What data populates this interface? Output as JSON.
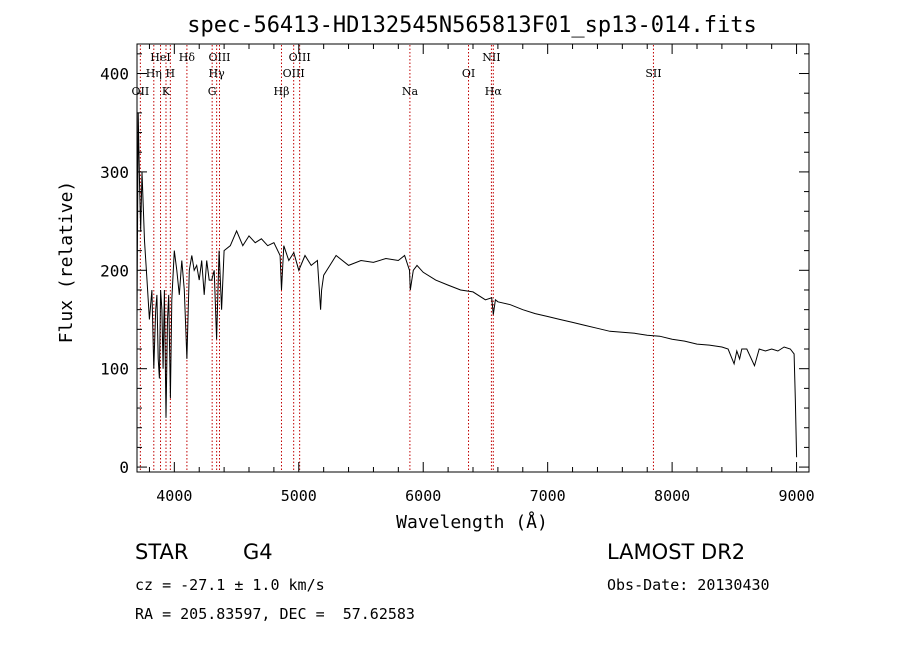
{
  "chart_data": {
    "type": "line",
    "title": "spec-56413-HD132545N565813F01_sp13-014.fits",
    "xlabel": "Wavelength (Å)",
    "ylabel": "Flux (relative)",
    "xlim": [
      3700,
      9100
    ],
    "ylim": [
      -5,
      430
    ],
    "x_ticks": [
      4000,
      5000,
      6000,
      7000,
      8000,
      9000
    ],
    "y_ticks": [
      0,
      100,
      200,
      300,
      400
    ],
    "grid": false,
    "series": [
      {
        "x": [
          3700,
          3710,
          3720,
          3730,
          3740,
          3760,
          3780,
          3800,
          3820,
          3835,
          3850,
          3860,
          3870,
          3880,
          3890,
          3900,
          3910,
          3920,
          3933,
          3945,
          3955,
          3968,
          3980,
          4000,
          4020,
          4040,
          4060,
          4080,
          4101,
          4120,
          4140,
          4160,
          4180,
          4200,
          4220,
          4240,
          4260,
          4280,
          4300,
          4320,
          4340,
          4360,
          4380,
          4400,
          4450,
          4500,
          4550,
          4600,
          4650,
          4700,
          4750,
          4800,
          4850,
          4861,
          4880,
          4920,
          4960,
          5000,
          5050,
          5100,
          5150,
          5175,
          5183,
          5200,
          5250,
          5300,
          5400,
          5500,
          5600,
          5700,
          5800,
          5850,
          5890,
          5896,
          5920,
          5950,
          6000,
          6100,
          6200,
          6300,
          6400,
          6500,
          6550,
          6563,
          6580,
          6600,
          6700,
          6800,
          6900,
          7000,
          7100,
          7200,
          7300,
          7400,
          7500,
          7600,
          7700,
          7800,
          7900,
          8000,
          8100,
          8200,
          8300,
          8400,
          8450,
          8498,
          8520,
          8542,
          8560,
          8600,
          8662,
          8700,
          8750,
          8800,
          8850,
          8900,
          8950,
          8980,
          8990,
          9000
        ],
        "y": [
          150,
          360,
          290,
          240,
          300,
          230,
          190,
          150,
          180,
          100,
          160,
          175,
          110,
          90,
          180,
          160,
          100,
          180,
          50,
          150,
          175,
          70,
          170,
          220,
          200,
          175,
          210,
          180,
          110,
          200,
          215,
          200,
          205,
          190,
          210,
          175,
          210,
          190,
          190,
          200,
          130,
          220,
          160,
          220,
          225,
          240,
          225,
          235,
          228,
          232,
          225,
          228,
          215,
          180,
          225,
          210,
          218,
          200,
          215,
          205,
          210,
          160,
          180,
          195,
          205,
          215,
          205,
          210,
          208,
          212,
          210,
          215,
          200,
          180,
          200,
          205,
          198,
          190,
          185,
          180,
          178,
          170,
          172,
          155,
          170,
          168,
          165,
          160,
          156,
          153,
          150,
          147,
          144,
          141,
          138,
          137,
          136,
          134,
          133,
          130,
          128,
          125,
          124,
          122,
          120,
          105,
          118,
          110,
          120,
          120,
          103,
          120,
          118,
          120,
          118,
          122,
          120,
          115,
          70,
          10
        ]
      }
    ],
    "line_markers": [
      {
        "label": "OII",
        "x": 3727,
        "row": 3
      },
      {
        "label": "HeI",
        "x": 3889,
        "row": 1
      },
      {
        "label": "Hη",
        "x": 3835,
        "row": 2
      },
      {
        "label": "H",
        "x": 3968,
        "row": 2
      },
      {
        "label": "K",
        "x": 3933,
        "row": 3
      },
      {
        "label": "Hδ",
        "x": 4101,
        "row": 1
      },
      {
        "label": "OIII",
        "x": 4363,
        "row": 1
      },
      {
        "label": "Hγ",
        "x": 4340,
        "row": 2
      },
      {
        "label": "G",
        "x": 4304,
        "row": 3
      },
      {
        "label": "Hβ",
        "x": 4861,
        "row": 3
      },
      {
        "label": "OIII",
        "x": 4959,
        "row": 2
      },
      {
        "label": "OIII",
        "x": 5007,
        "row": 1
      },
      {
        "label": "Na",
        "x": 5893,
        "row": 3
      },
      {
        "label": "OI",
        "x": 6364,
        "row": 2
      },
      {
        "label": "NII",
        "x": 6548,
        "row": 1
      },
      {
        "label": "Hα",
        "x": 6563,
        "row": 3
      },
      {
        "label": "SII",
        "x": 7850,
        "row": 2
      }
    ],
    "marker_color": "#c00000"
  },
  "info": {
    "object_class": "STAR",
    "subclass": "G4",
    "survey": "LAMOST DR2",
    "cz": "cz = -27.1 ± 1.0 km/s",
    "obs_date": "Obs-Date: 20130430",
    "coords": "RA = 205.83597, DEC =  57.62583"
  }
}
